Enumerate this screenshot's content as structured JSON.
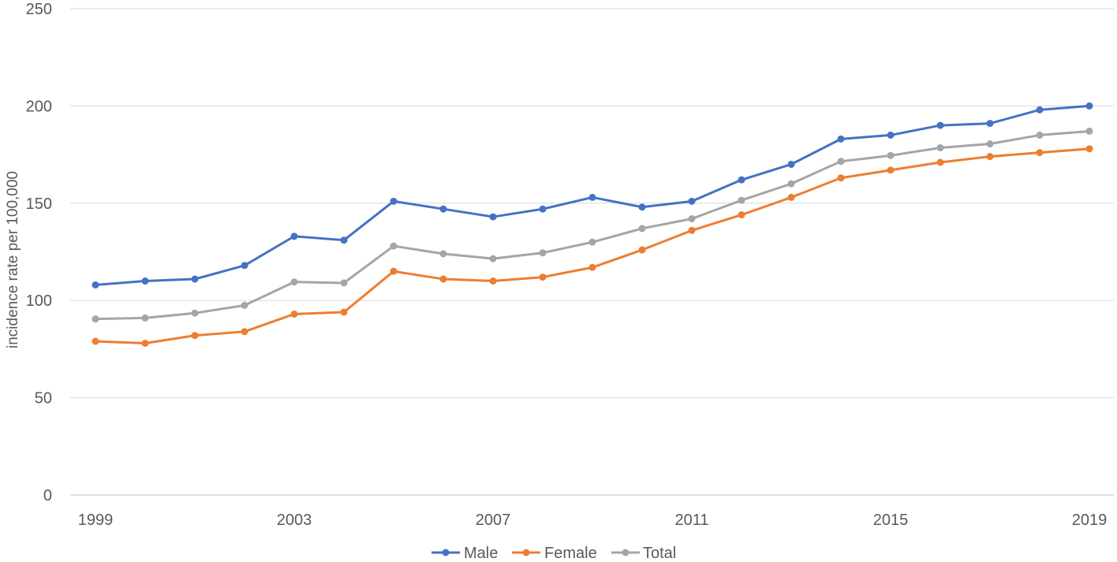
{
  "chart_data": {
    "type": "line",
    "title": "",
    "xlabel": "",
    "ylabel": "incidence rate per 100,000",
    "ylim": [
      0,
      250
    ],
    "yticks": [
      0,
      50,
      100,
      150,
      200,
      250
    ],
    "x": [
      1999,
      2000,
      2001,
      2002,
      2003,
      2004,
      2005,
      2006,
      2007,
      2008,
      2009,
      2010,
      2011,
      2012,
      2013,
      2014,
      2015,
      2016,
      2017,
      2018,
      2019
    ],
    "xtick_labels": [
      "1999",
      "2003",
      "2007",
      "2011",
      "2015",
      "2019"
    ],
    "grid": "horizontal",
    "legend_position": "bottom",
    "series": [
      {
        "name": "Male",
        "color": "#4472c4",
        "values": [
          108,
          110,
          111,
          118,
          133,
          131,
          151,
          147,
          143,
          147,
          153,
          148,
          151,
          162,
          170,
          183,
          185,
          190,
          191,
          198,
          200
        ]
      },
      {
        "name": "Female",
        "color": "#ed7d31",
        "values": [
          79,
          78,
          82,
          84,
          93,
          94,
          115,
          111,
          110,
          112,
          117,
          126,
          136,
          144,
          153,
          163,
          167,
          171,
          174,
          176,
          178
        ]
      },
      {
        "name": "Total",
        "color": "#a5a5a5",
        "values": [
          90.5,
          91,
          93.5,
          97.5,
          109.5,
          109,
          128,
          124,
          121.5,
          124.5,
          130,
          137,
          142,
          151.5,
          160,
          171.5,
          174.5,
          178.5,
          180.5,
          185,
          187
        ]
      }
    ]
  }
}
